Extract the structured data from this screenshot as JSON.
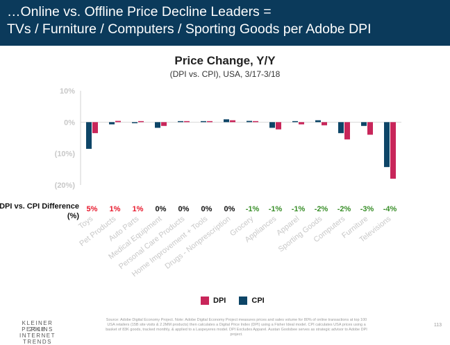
{
  "banner": {
    "line1": "…Online vs. Offline Price Decline Leaders =",
    "line2": "TVs / Furniture / Computers / Sporting Goods per Adobe DPI"
  },
  "chart_data": {
    "type": "bar",
    "title": "Price Change, Y/Y",
    "subtitle": "(DPI vs. CPI), USA, 3/17-3/18",
    "xlabel": "",
    "ylabel": "",
    "ylim": [
      -20,
      10
    ],
    "yticks": [
      10,
      0,
      -10,
      -20
    ],
    "ytick_labels": [
      "10%",
      "0%",
      "(10%)",
      "(20%)"
    ],
    "categories": [
      "Toys",
      "Pet Products",
      "Auto Parts",
      "Medical Equipment",
      "Personal Care Products",
      "Home Improvement + Tools",
      "Drugs - Nonprescription",
      "Grocery",
      "Appliances",
      "Apparel",
      "Sporting Goods",
      "Computers",
      "Furniture",
      "Televisions"
    ],
    "series": [
      {
        "name": "DPI",
        "color": "#c8265a",
        "values": [
          -3.5,
          0.4,
          0.3,
          -1.2,
          0.0,
          0.0,
          0.6,
          0.0,
          -2.3,
          -0.7,
          -1.0,
          -5.5,
          -4.0,
          -18.0
        ]
      },
      {
        "name": "CPI",
        "color": "#0d4567",
        "values": [
          -8.5,
          -0.7,
          -0.3,
          -1.8,
          0.0,
          0.1,
          0.9,
          0.4,
          -1.8,
          0.3,
          0.6,
          -3.5,
          -1.2,
          -14.3
        ]
      }
    ],
    "difference_label": "DPI vs. CPI Difference (%)",
    "differences": [
      "5%",
      "1%",
      "1%",
      "0%",
      "0%",
      "0%",
      "0%",
      "-1%",
      "-1%",
      "-1%",
      "-2%",
      "-2%",
      "-3%",
      "-4%"
    ],
    "difference_colors": [
      "#e8182c",
      "#e8182c",
      "#e8182c",
      "#111111",
      "#111111",
      "#111111",
      "#111111",
      "#3a8f2a",
      "#3a8f2a",
      "#3a8f2a",
      "#3a8f2a",
      "#3a8f2a",
      "#3a8f2a",
      "#3a8f2a"
    ],
    "grid": false,
    "legend_position": "bottom-center"
  },
  "legend": {
    "dpi": "DPI",
    "cpi": "CPI"
  },
  "colors": {
    "banner": "#0b3a5b",
    "dpi": "#c8265a",
    "cpi": "#0d4567",
    "axis_text": "#c8c8c8"
  },
  "footer": {
    "brand_line1": "KLEINER PERKINS",
    "brand_line2": "2018",
    "brand_line3": "INTERNET TRENDS",
    "source": "Source: Adobe Digital Economy Project. Note: Adobe Digital Economy Project measures prices and sales volume for 80% of online transactions at top 100 USA retailers (15B site visits & 2.2MM products) then calculates a Digital Price Index (DPI) using a Fisher Ideal model. CPI calculates USA prices using a basket of 83K goods, tracked monthly, & applied to a Laspeyeres model. DPI Excludes Apparel. Austan Goolsbee serves as strategic advisor to Adobe DPI project.",
    "page_number": "113"
  }
}
